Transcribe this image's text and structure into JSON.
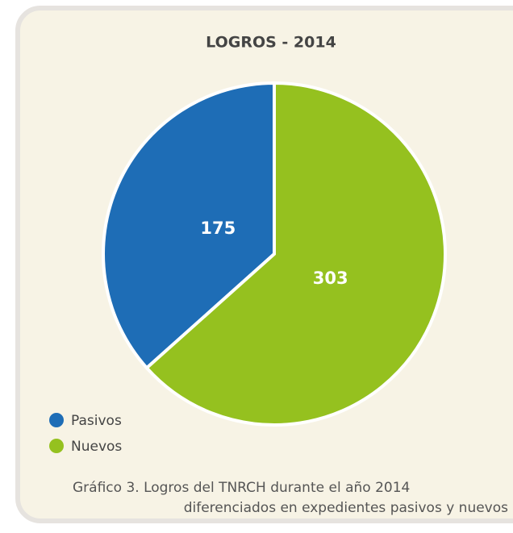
{
  "chart_data": {
    "type": "pie",
    "title": "LOGROS - 2014",
    "categories": [
      "Pasivos",
      "Nuevos"
    ],
    "values": [
      175,
      303
    ],
    "colors": [
      "#1e6db6",
      "#95c11f"
    ],
    "caption": [
      "Gráfico 3. Logros del TNRCH durante el año 2014",
      "diferenciados en expedientes pasivos y nuevos"
    ]
  }
}
